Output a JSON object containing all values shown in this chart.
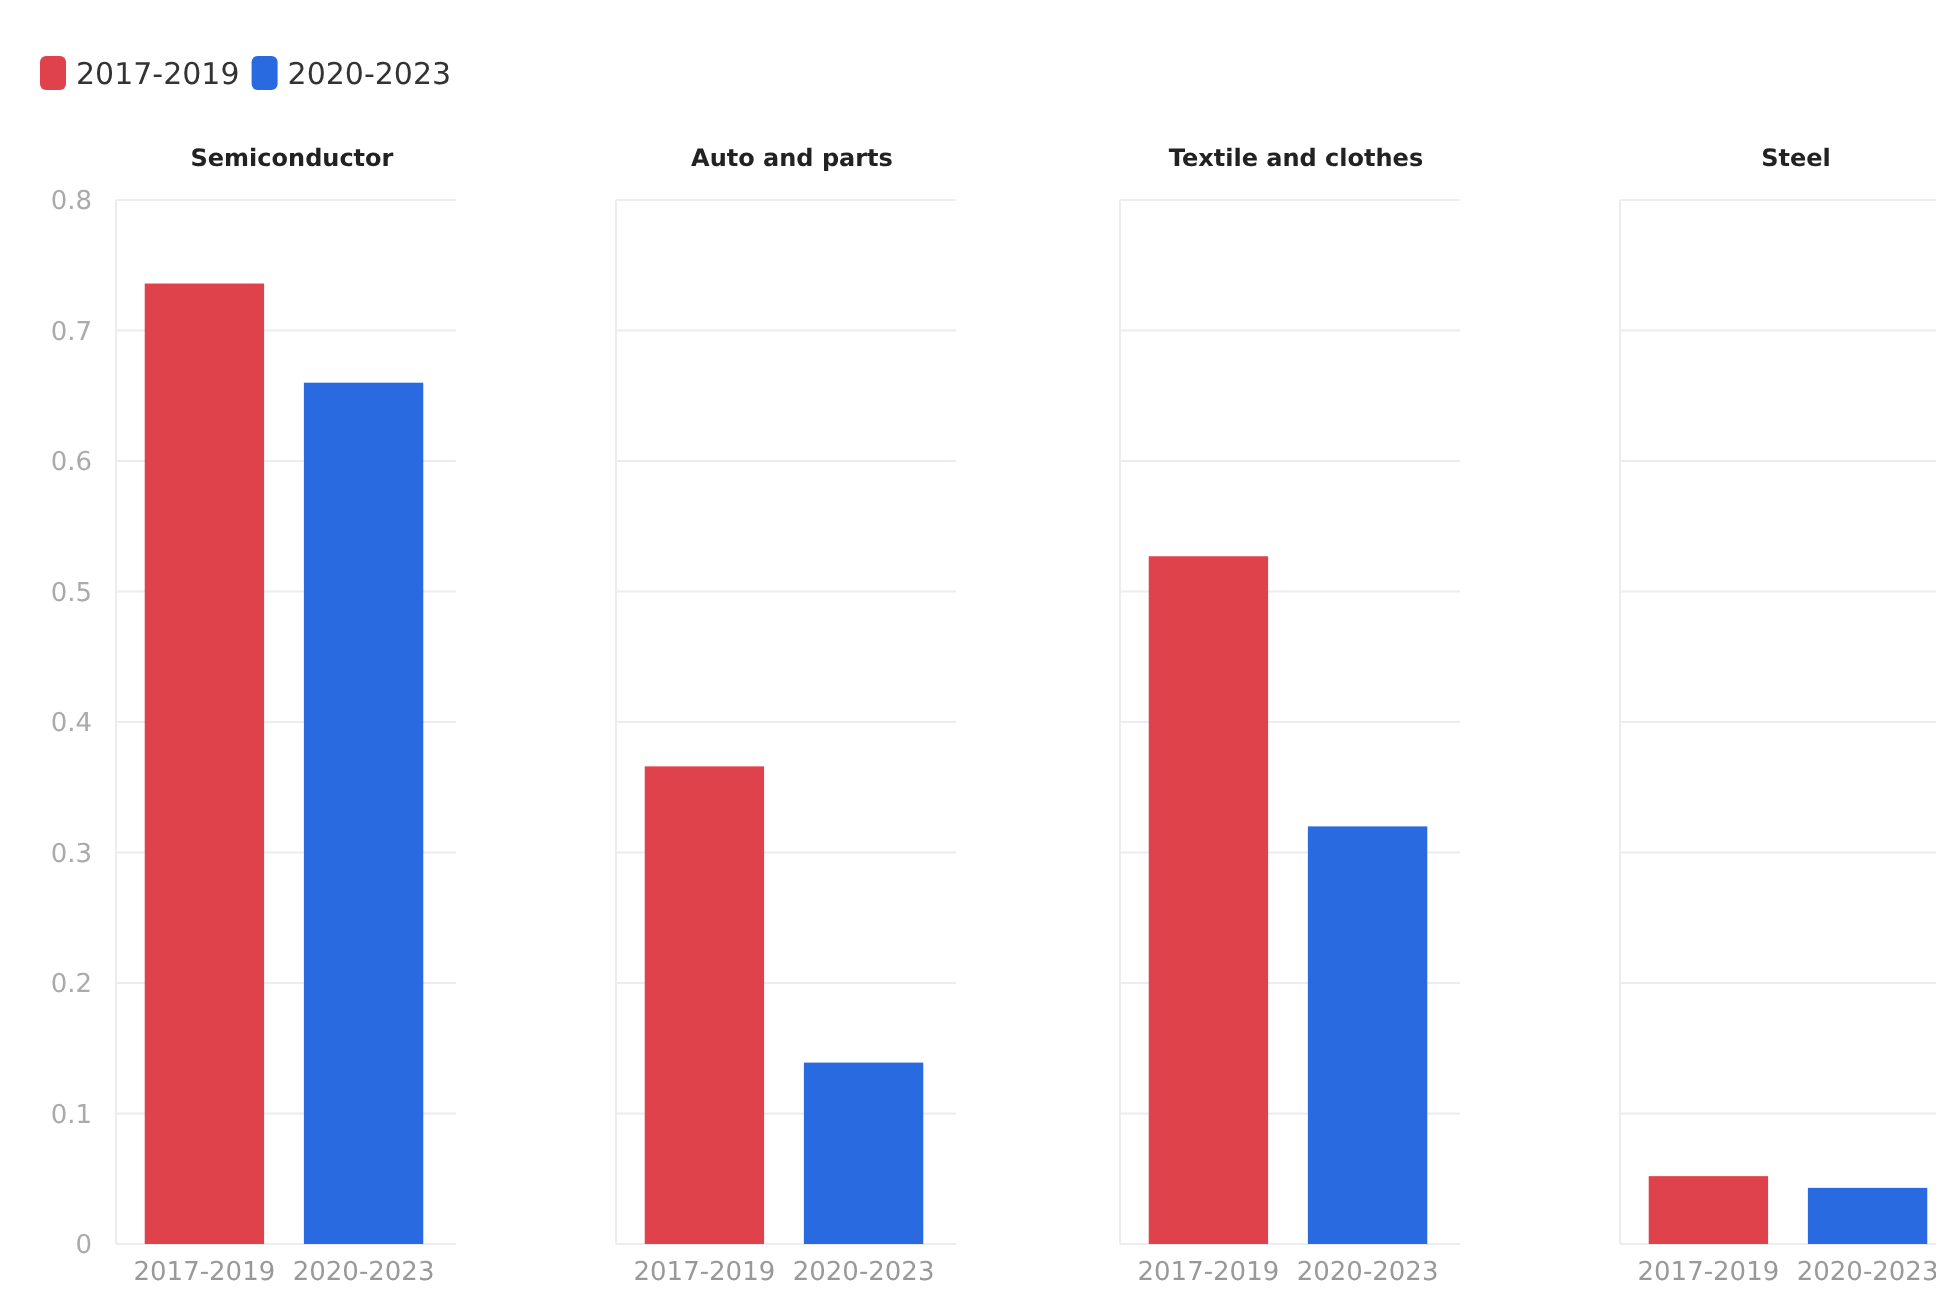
{
  "chart_data": [
    {
      "type": "bar",
      "title": "Semiconductor",
      "categories": [
        "2017-2019",
        "2020-2023"
      ],
      "series": [
        {
          "name": "2017-2019",
          "color": "#e0424b",
          "values": [
            0.736,
            null
          ]
        },
        {
          "name": "2020-2023",
          "color": "#2a6ae0",
          "values": [
            null,
            0.66
          ]
        }
      ],
      "ylim": [
        0,
        0.8
      ],
      "yticks": [
        0,
        0.1,
        0.2,
        0.3,
        0.4,
        0.5,
        0.6,
        0.7,
        0.8
      ],
      "grid": "y",
      "legend": "top left"
    },
    {
      "type": "bar",
      "title": "Auto and parts",
      "categories": [
        "2017-2019",
        "2020-2023"
      ],
      "series": [
        {
          "color": "#e0424b",
          "values": [
            0.366,
            null
          ]
        },
        {
          "color": "#2a6ae0",
          "values": [
            null,
            0.139
          ]
        }
      ],
      "ylim": [
        0,
        0.8
      ],
      "yticks": [
        0,
        0.1,
        0.2,
        0.3,
        0.4,
        0.5,
        0.6,
        0.7,
        0.8
      ],
      "grid": "y",
      "tick_labels": "x"
    },
    {
      "type": "bar",
      "title": "Textile and clothes",
      "categories": [
        "2017-2019",
        "2020-2023"
      ],
      "series": [
        {
          "color": "#e0424b",
          "values": [
            0.527,
            null
          ]
        },
        {
          "color": "#2a6ae0",
          "values": [
            null,
            0.32
          ]
        }
      ],
      "ylim": [
        0,
        0.8
      ],
      "yticks": [
        0,
        0.1,
        0.2,
        0.3,
        0.4,
        0.5,
        0.6,
        0.7,
        0.8
      ],
      "grid": "y",
      "tick_labels": "x"
    },
    {
      "type": "bar",
      "title": "Steel",
      "categories": [
        "2017-2019",
        "2020-2023"
      ],
      "series": [
        {
          "color": "#e0424b",
          "values": [
            0.052,
            null
          ]
        },
        {
          "color": "#2a6ae0",
          "values": [
            null,
            0.043
          ]
        }
      ],
      "ylim": [
        0,
        0.8
      ],
      "yticks": [
        0,
        0.1,
        0.2,
        0.3,
        0.4,
        0.5,
        0.6,
        0.7,
        0.8
      ],
      "grid": "y",
      "tick_labels": "x"
    }
  ]
}
